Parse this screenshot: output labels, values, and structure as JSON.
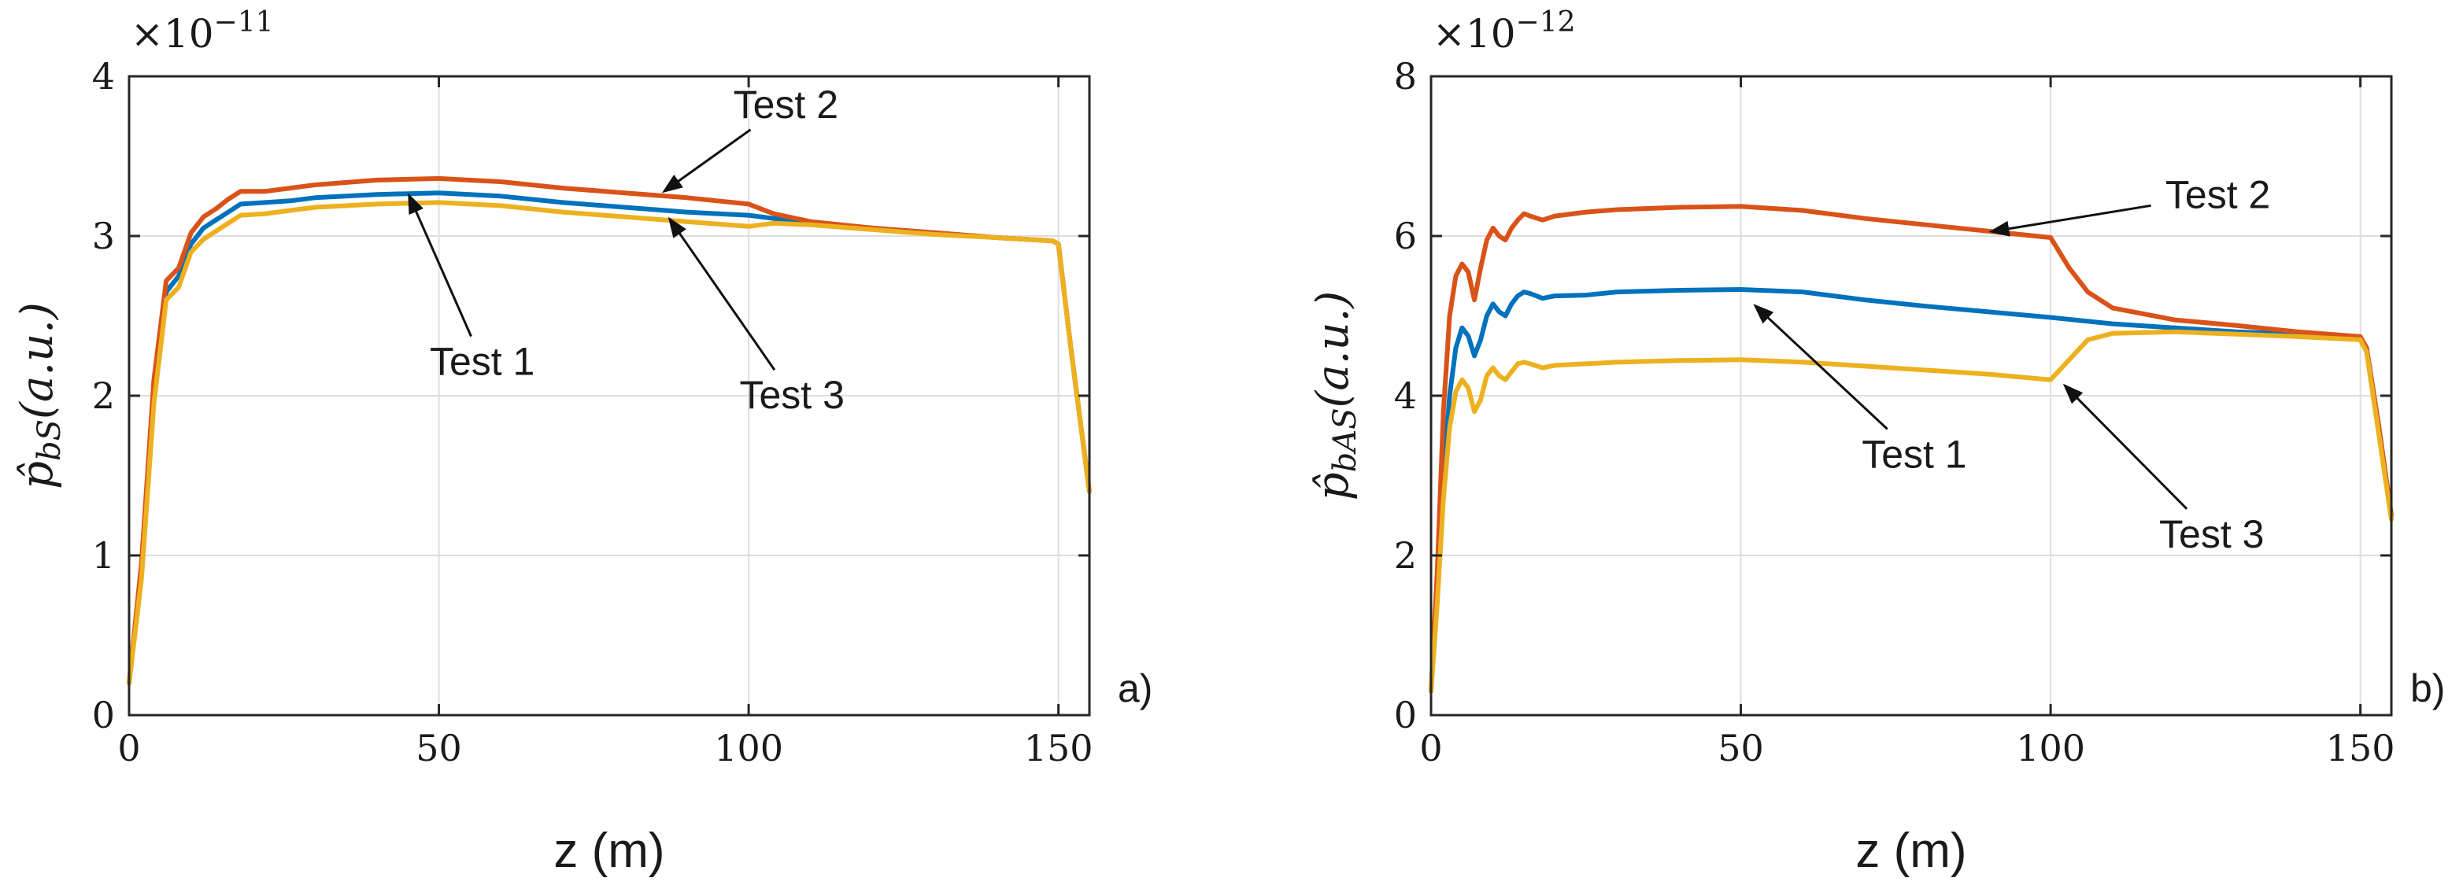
{
  "chart_data": [
    {
      "type": "line",
      "panel_label": "a)",
      "xlabel": "z (m)",
      "ylabel": "p̂bS(a.u.)",
      "ylabel_main": "p̂",
      "ylabel_sub": "bS",
      "ylabel_suffix": "(a.u.)",
      "multiplier_base": "×10",
      "multiplier_exp": "−11",
      "xlim": [
        0,
        155
      ],
      "ylim": [
        0,
        4
      ],
      "xticks": [
        0,
        50,
        100,
        150
      ],
      "yticks": [
        0,
        1,
        2,
        3,
        4
      ],
      "grid": true,
      "series": [
        {
          "name": "Test 1",
          "color": "#0072BD",
          "x": [
            0,
            2,
            4,
            6,
            8,
            10,
            12,
            14,
            16,
            18,
            22,
            26,
            30,
            40,
            50,
            60,
            70,
            80,
            90,
            100,
            104,
            110,
            120,
            130,
            140,
            149,
            150,
            152,
            155
          ],
          "y": [
            0.2,
            0.9,
            2.0,
            2.65,
            2.75,
            2.95,
            3.05,
            3.1,
            3.15,
            3.2,
            3.21,
            3.22,
            3.24,
            3.26,
            3.27,
            3.25,
            3.21,
            3.18,
            3.15,
            3.13,
            3.11,
            3.08,
            3.05,
            3.02,
            2.99,
            2.97,
            2.95,
            2.3,
            1.4
          ]
        },
        {
          "name": "Test 2",
          "color": "#D95319",
          "x": [
            0,
            2,
            4,
            6,
            8,
            10,
            12,
            14,
            16,
            18,
            22,
            26,
            30,
            40,
            50,
            60,
            70,
            80,
            90,
            100,
            104,
            110,
            120,
            130,
            140,
            149,
            150,
            152,
            155
          ],
          "y": [
            0.2,
            0.95,
            2.1,
            2.72,
            2.8,
            3.02,
            3.12,
            3.17,
            3.23,
            3.28,
            3.28,
            3.3,
            3.32,
            3.35,
            3.36,
            3.34,
            3.3,
            3.27,
            3.24,
            3.2,
            3.14,
            3.09,
            3.05,
            3.02,
            2.99,
            2.97,
            2.95,
            2.3,
            1.4
          ]
        },
        {
          "name": "Test 3",
          "color": "#EDB120",
          "x": [
            0,
            2,
            4,
            6,
            8,
            10,
            12,
            14,
            16,
            18,
            22,
            26,
            30,
            40,
            50,
            60,
            70,
            80,
            90,
            100,
            104,
            110,
            120,
            130,
            140,
            149,
            150,
            152,
            155
          ],
          "y": [
            0.2,
            0.85,
            1.95,
            2.6,
            2.68,
            2.9,
            2.98,
            3.03,
            3.08,
            3.13,
            3.14,
            3.16,
            3.18,
            3.2,
            3.21,
            3.19,
            3.15,
            3.12,
            3.09,
            3.06,
            3.08,
            3.07,
            3.04,
            3.01,
            2.99,
            2.97,
            2.95,
            2.3,
            1.4
          ]
        }
      ],
      "annotations": [
        {
          "text": "Test 2",
          "text_at": [
            106,
            3.74
          ],
          "arrow_to": [
            86,
            3.27
          ]
        },
        {
          "text": "Test 1",
          "text_at": [
            57,
            2.13
          ],
          "arrow_to": [
            45,
            3.27
          ]
        },
        {
          "text": "Test 3",
          "text_at": [
            107,
            1.92
          ],
          "arrow_to": [
            87,
            3.12
          ]
        }
      ]
    },
    {
      "type": "line",
      "panel_label": "b)",
      "xlabel": "z (m)",
      "ylabel": "p̂bAS(a.u.)",
      "ylabel_main": "p̂",
      "ylabel_sub": "bAS",
      "ylabel_suffix": "(a.u.)",
      "multiplier_base": "×10",
      "multiplier_exp": "−12",
      "xlim": [
        0,
        155
      ],
      "ylim": [
        0,
        8
      ],
      "xticks": [
        0,
        50,
        100,
        150
      ],
      "yticks": [
        0,
        2,
        4,
        6,
        8
      ],
      "grid": true,
      "series": [
        {
          "name": "Test 1",
          "color": "#0072BD",
          "x": [
            0,
            1,
            2,
            3,
            4,
            5,
            6,
            7,
            8,
            9,
            10,
            11,
            12,
            13,
            14,
            15,
            16,
            18,
            20,
            25,
            30,
            40,
            50,
            60,
            70,
            80,
            90,
            100,
            110,
            120,
            130,
            140,
            150,
            151,
            153,
            155
          ],
          "y": [
            0.3,
            1.5,
            3.0,
            4.0,
            4.6,
            4.85,
            4.75,
            4.5,
            4.7,
            5.0,
            5.15,
            5.05,
            5.0,
            5.15,
            5.25,
            5.3,
            5.28,
            5.22,
            5.25,
            5.26,
            5.3,
            5.32,
            5.33,
            5.3,
            5.2,
            5.12,
            5.05,
            4.98,
            4.9,
            4.85,
            4.8,
            4.77,
            4.73,
            4.6,
            3.6,
            2.5
          ]
        },
        {
          "name": "Test 2",
          "color": "#D95319",
          "x": [
            0,
            1,
            2,
            3,
            4,
            5,
            6,
            7,
            8,
            9,
            10,
            11,
            12,
            13,
            14,
            15,
            16,
            18,
            20,
            25,
            30,
            40,
            50,
            60,
            70,
            80,
            90,
            100,
            103,
            106,
            110,
            120,
            130,
            140,
            150,
            151,
            153,
            155
          ],
          "y": [
            0.3,
            1.8,
            3.8,
            5.0,
            5.5,
            5.65,
            5.55,
            5.2,
            5.6,
            5.95,
            6.1,
            6.0,
            5.95,
            6.1,
            6.2,
            6.28,
            6.25,
            6.2,
            6.25,
            6.3,
            6.33,
            6.36,
            6.37,
            6.32,
            6.22,
            6.14,
            6.06,
            5.98,
            5.6,
            5.3,
            5.1,
            4.95,
            4.88,
            4.8,
            4.74,
            4.6,
            3.6,
            2.5
          ]
        },
        {
          "name": "Test 3",
          "color": "#EDB120",
          "x": [
            0,
            1,
            2,
            3,
            4,
            5,
            6,
            7,
            8,
            9,
            10,
            11,
            12,
            13,
            14,
            15,
            16,
            18,
            20,
            25,
            30,
            40,
            50,
            60,
            70,
            80,
            90,
            100,
            103,
            106,
            110,
            120,
            130,
            140,
            150,
            151,
            153,
            155
          ],
          "y": [
            0.3,
            1.4,
            2.7,
            3.6,
            4.05,
            4.2,
            4.1,
            3.8,
            3.95,
            4.25,
            4.35,
            4.25,
            4.2,
            4.3,
            4.4,
            4.42,
            4.4,
            4.35,
            4.38,
            4.4,
            4.42,
            4.44,
            4.45,
            4.42,
            4.37,
            4.32,
            4.27,
            4.2,
            4.45,
            4.7,
            4.78,
            4.8,
            4.77,
            4.74,
            4.7,
            4.55,
            3.5,
            2.45
          ]
        }
      ],
      "annotations": [
        {
          "text": "Test 2",
          "text_at": [
            127,
            6.35
          ],
          "arrow_to": [
            90,
            6.05
          ]
        },
        {
          "text": "Test 1",
          "text_at": [
            78,
            3.1
          ],
          "arrow_to": [
            52,
            5.15
          ]
        },
        {
          "text": "Test 3",
          "text_at": [
            126,
            2.1
          ],
          "arrow_to": [
            102,
            4.15
          ]
        }
      ]
    }
  ]
}
